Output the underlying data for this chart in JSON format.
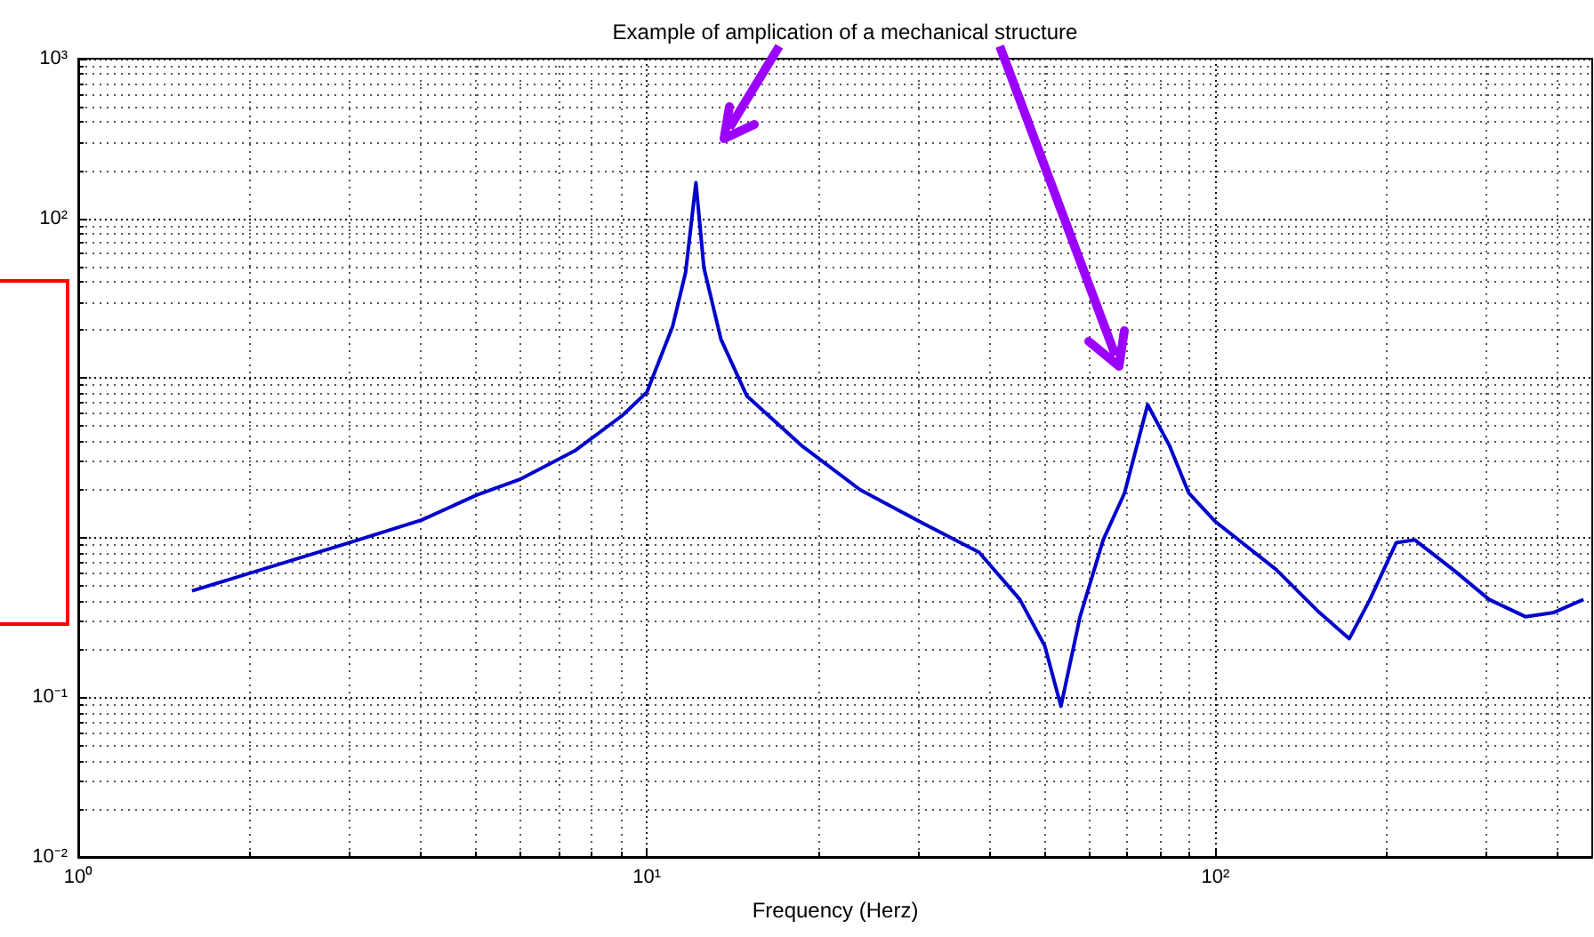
{
  "chart_data": {
    "type": "line",
    "title": "Example of amplication of a mechanical structure",
    "xlabel": "Frequency (Herz)",
    "log": "xy",
    "grid": true,
    "marker": "none",
    "line_style": "solid",
    "xlim": [
      1,
      460
    ],
    "ylim": [
      0.01,
      1000
    ],
    "xticks": [
      {
        "value": 1,
        "label": "10⁰"
      },
      {
        "value": 10,
        "label": "10¹"
      },
      {
        "value": 100,
        "label": "10²"
      }
    ],
    "yticks": [
      {
        "value": 0.01,
        "label": "10⁻²"
      },
      {
        "value": 0.1,
        "label": "10⁻¹"
      },
      {
        "value": 1,
        "label": null
      },
      {
        "value": 10,
        "label": null
      },
      {
        "value": 100,
        "label": "10²"
      },
      {
        "value": 1000,
        "label": "10³"
      }
    ],
    "series": [
      {
        "color": "#0000cc",
        "x": [
          1.585,
          3.0,
          4.02,
          5.02,
          6.0,
          7.47,
          9.07,
          10,
          11.1,
          11.7,
          12.2,
          12.6,
          13.5,
          15.0,
          18.7,
          23.7,
          30.2,
          38.4,
          45.3,
          50.1,
          53.5,
          57.8,
          63.5,
          69.2,
          76.0,
          83,
          89.8,
          100,
          128,
          151,
          172,
          187,
          208,
          224,
          262,
          303,
          351,
          394,
          444
        ],
        "values": [
          0.464,
          0.93,
          1.29,
          1.85,
          2.33,
          3.5,
          5.85,
          8.15,
          21,
          46,
          167,
          49,
          17.5,
          7.7,
          3.78,
          2.0,
          1.26,
          0.81,
          0.41,
          0.21,
          0.088,
          0.32,
          0.97,
          1.9,
          6.8,
          3.78,
          1.9,
          1.26,
          0.63,
          0.35,
          0.233,
          0.41,
          0.93,
          0.97,
          0.63,
          0.41,
          0.32,
          0.34,
          0.41
        ]
      }
    ]
  }
}
